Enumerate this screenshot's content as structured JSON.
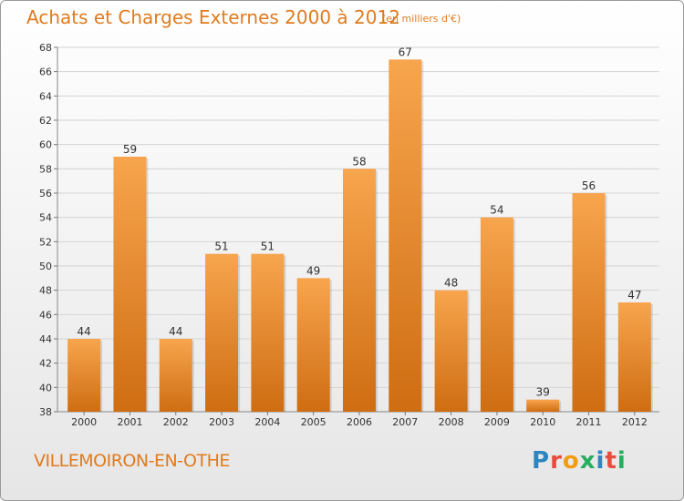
{
  "title": "Achats et Charges Externes 2000 à 2012",
  "subtitle": "(en milliers d'€)",
  "commune": "VILLEMOIRON-EN-OTHE",
  "brand": {
    "letters": [
      {
        "ch": "P",
        "color": "#2e86c1"
      },
      {
        "ch": "r",
        "color": "#e74c3c"
      },
      {
        "ch": "o",
        "color": "#f39c12"
      },
      {
        "ch": "x",
        "color": "#27ae60"
      },
      {
        "ch": "i",
        "color": "#2e86c1"
      },
      {
        "ch": "t",
        "color": "#e74c3c"
      },
      {
        "ch": "i",
        "color": "#27ae60"
      }
    ]
  },
  "chart_data": {
    "type": "bar",
    "categories": [
      "2000",
      "2001",
      "2002",
      "2003",
      "2004",
      "2005",
      "2006",
      "2007",
      "2008",
      "2009",
      "2010",
      "2011",
      "2012"
    ],
    "values": [
      44,
      59,
      44,
      51,
      51,
      49,
      58,
      67,
      48,
      54,
      39,
      56,
      47
    ],
    "ylim": [
      38,
      68
    ],
    "yticks": [
      38,
      40,
      42,
      44,
      46,
      48,
      50,
      52,
      54,
      56,
      58,
      60,
      62,
      64,
      66,
      68
    ],
    "grid": true,
    "bar_color_top": "#f7a54e",
    "bar_color_bottom": "#cf6d12"
  }
}
